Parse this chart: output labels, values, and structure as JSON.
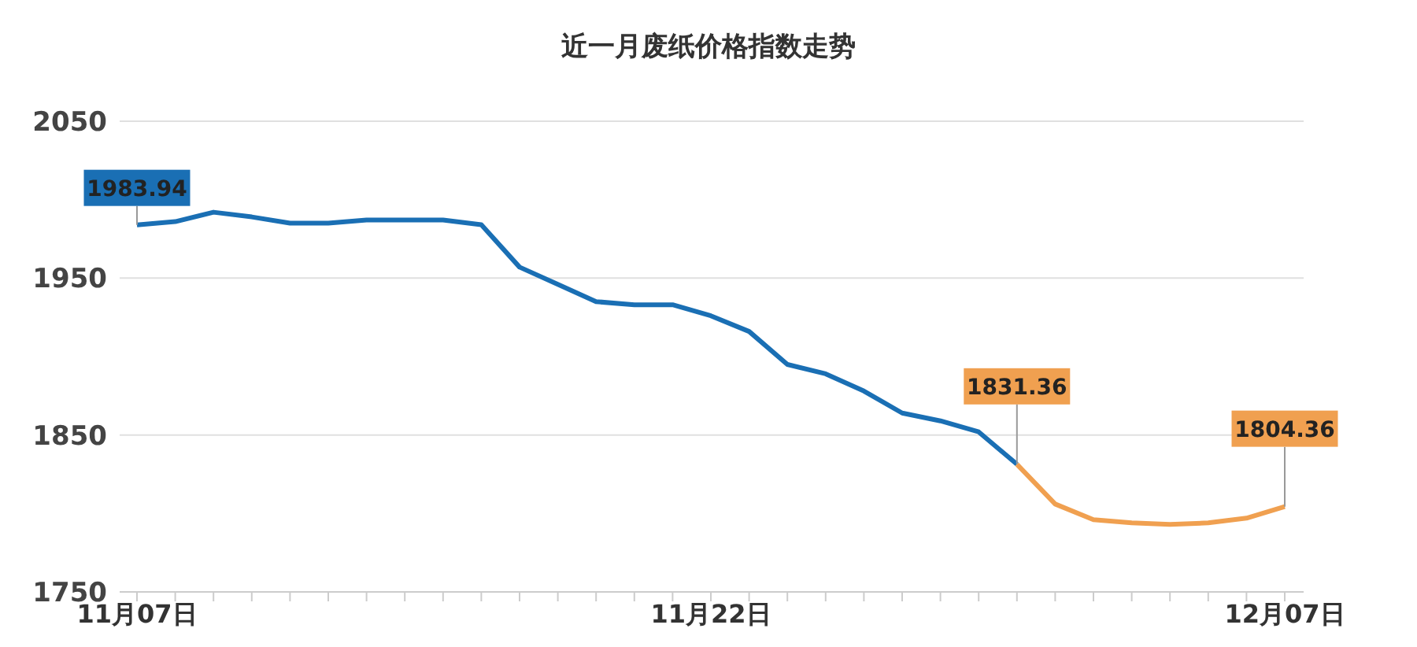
{
  "chart_data": {
    "type": "line",
    "title": "近一月废纸价格指数走势",
    "categories": [
      "11月07日",
      null,
      null,
      null,
      null,
      null,
      null,
      null,
      null,
      null,
      null,
      null,
      null,
      null,
      null,
      "11月22日",
      null,
      null,
      null,
      null,
      null,
      null,
      null,
      null,
      null,
      null,
      null,
      null,
      null,
      null,
      "12月07日"
    ],
    "series": [
      {
        "color": "#1a6fb4",
        "values": [
          1983.94,
          1986,
          1992,
          1989,
          1985,
          1985,
          1987,
          1987,
          1987,
          1984,
          1957,
          1946,
          1935,
          1933,
          1933,
          1926,
          1916,
          1895,
          1889,
          1878,
          1864,
          1859,
          1852,
          1831.36,
          null,
          null,
          null,
          null,
          null,
          null,
          null
        ],
        "value_labels": [
          "1983.94",
          null,
          null,
          null,
          null,
          null,
          null,
          null,
          null,
          null,
          null,
          null,
          null,
          null,
          null,
          null,
          null,
          null,
          null,
          null,
          null,
          null,
          null,
          null,
          null,
          null,
          null,
          null,
          null,
          null,
          null
        ]
      },
      {
        "color": "#f0a050",
        "values": [
          null,
          null,
          null,
          null,
          null,
          null,
          null,
          null,
          null,
          null,
          null,
          null,
          null,
          null,
          null,
          null,
          null,
          null,
          null,
          null,
          null,
          null,
          null,
          1831.36,
          1806,
          1796,
          1794,
          1793,
          1794,
          1797,
          1804.36
        ],
        "value_labels": [
          null,
          null,
          null,
          null,
          null,
          null,
          null,
          null,
          null,
          null,
          null,
          null,
          null,
          null,
          null,
          null,
          null,
          null,
          null,
          null,
          null,
          null,
          null,
          "1831.36",
          null,
          null,
          null,
          null,
          null,
          null,
          "1804.36"
        ]
      }
    ],
    "ylim": [
      1750,
      2050
    ],
    "yticks": [
      1750,
      1850,
      1950,
      2050
    ],
    "grid": "y",
    "marker": "none",
    "line_style": "solid"
  }
}
